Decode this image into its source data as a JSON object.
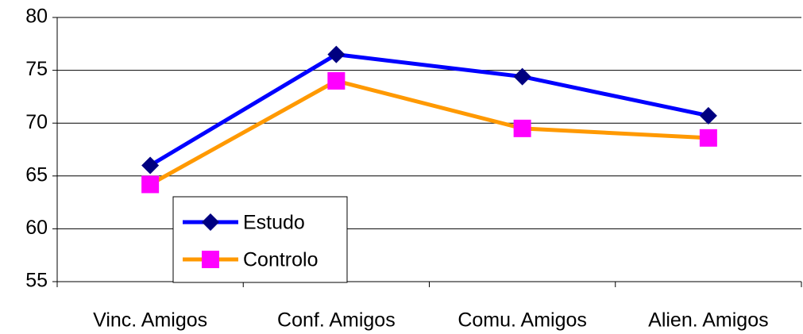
{
  "chart_data": {
    "type": "line",
    "categories": [
      "Vinc. Amigos",
      "Conf. Amigos",
      "Comu. Amigos",
      "Alien. Amigos"
    ],
    "series": [
      {
        "name": "Estudo",
        "color": "#0000ff",
        "marker_color": "#000080",
        "marker": "diamond",
        "values": [
          66,
          76.5,
          74.4,
          70.7
        ]
      },
      {
        "name": "Controlo",
        "color": "#ff9900",
        "marker_color": "#ff00ff",
        "marker": "square",
        "values": [
          64.2,
          74,
          69.5,
          68.6
        ]
      }
    ],
    "ylim": [
      55,
      80
    ],
    "yticks": [
      55,
      60,
      65,
      70,
      75,
      80
    ],
    "grid": true,
    "legend": "lower left"
  }
}
